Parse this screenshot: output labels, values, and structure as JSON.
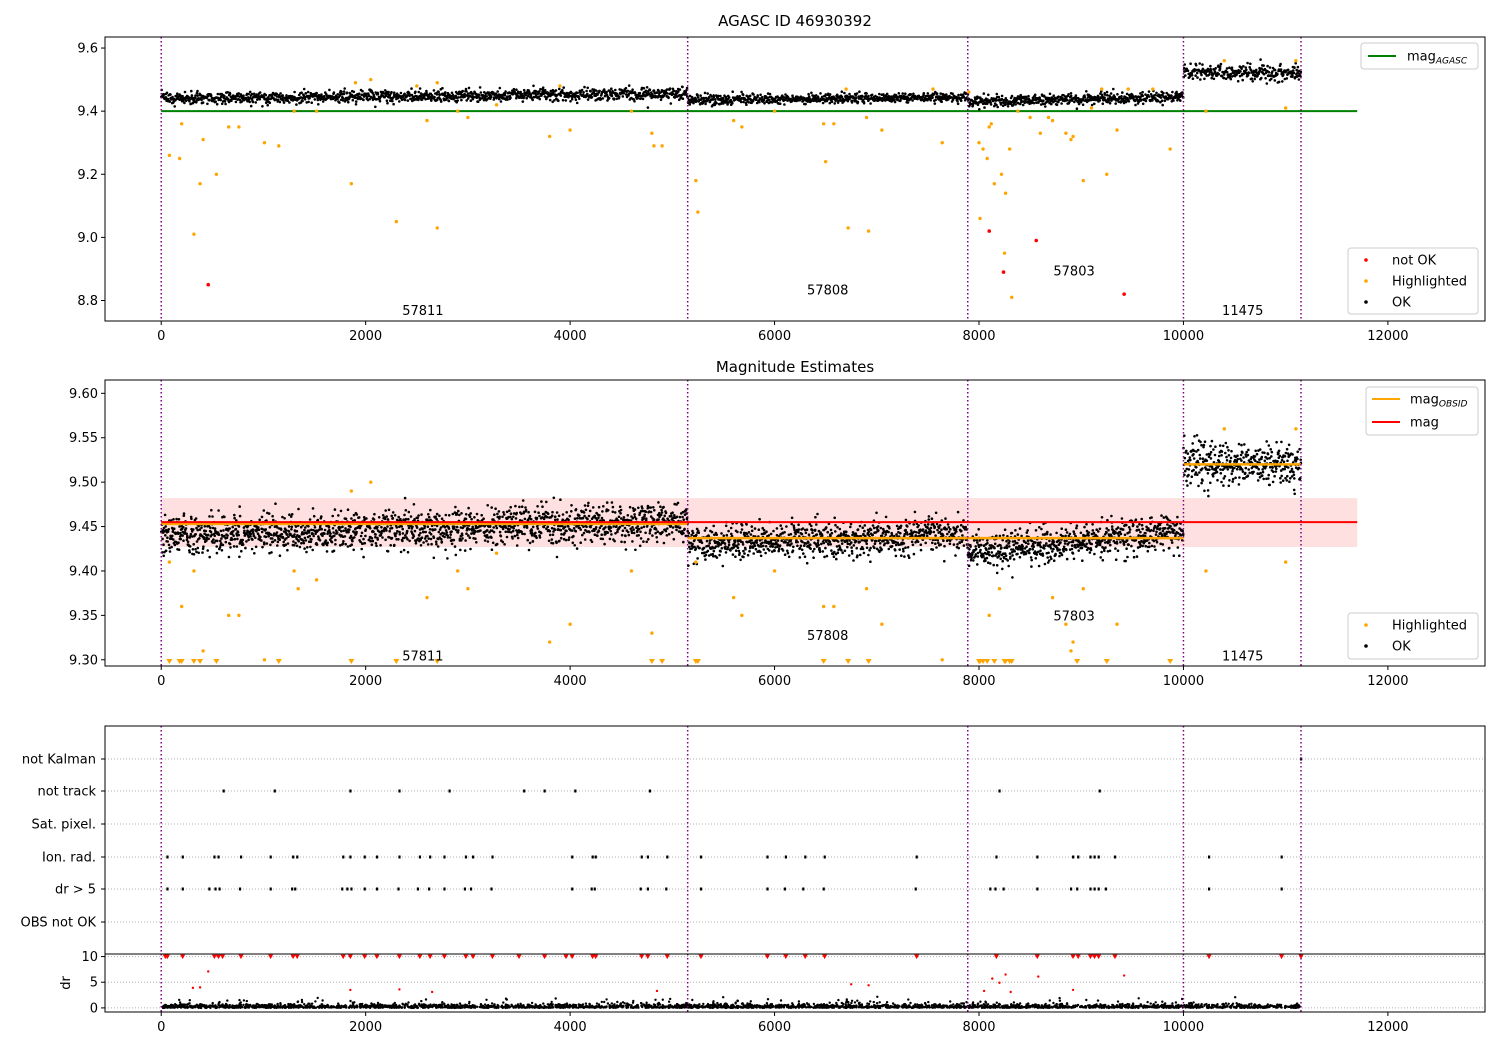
{
  "chart_data": [
    {
      "type": "scatter",
      "title": "AGASC ID 46930392",
      "xlim": [
        -550,
        12950
      ],
      "ylim": [
        8.735,
        9.635
      ],
      "xticks": [
        0,
        2000,
        4000,
        6000,
        8000,
        10000,
        12000
      ],
      "xtick_labels": [
        "0",
        "2000",
        "4000",
        "6000",
        "8000",
        "10000",
        "12000"
      ],
      "yticks": [
        8.8,
        9.0,
        9.2,
        9.4,
        9.6
      ],
      "ytick_labels": [
        "8.8",
        "9.0",
        "9.2",
        "9.4",
        "9.6"
      ],
      "obsid_boundaries": [
        0,
        5150,
        7890,
        10000,
        11150
      ],
      "obsid_labels": [
        {
          "text": "57811",
          "x": 2560,
          "y": 8.77
        },
        {
          "text": "57808",
          "x": 6520,
          "y": 8.835
        },
        {
          "text": "57803",
          "x": 8930,
          "y": 8.895
        },
        {
          "text": "11475",
          "x": 10580,
          "y": 8.77
        }
      ],
      "mag_agasc": {
        "value": 9.4,
        "x_range": [
          0,
          11700
        ],
        "color": "#008000"
      },
      "ok_segments": [
        {
          "x0": 0,
          "x1": 5150,
          "y_start": 9.44,
          "y_end": 9.455,
          "spread": 0.025
        },
        {
          "x0": 5150,
          "x1": 7890,
          "y_start": 9.435,
          "y_end": 9.445,
          "spread": 0.02
        },
        {
          "x0": 7890,
          "x1": 10000,
          "y_start": 9.43,
          "y_end": 9.445,
          "spread": 0.022
        },
        {
          "x0": 10000,
          "x1": 11150,
          "y_start": 9.525,
          "y_end": 9.52,
          "spread": 0.03
        }
      ],
      "highlighted_points": [
        [
          80,
          9.26
        ],
        [
          180,
          9.25
        ],
        [
          200,
          9.36
        ],
        [
          320,
          9.01
        ],
        [
          380,
          9.17
        ],
        [
          410,
          9.31
        ],
        [
          540,
          9.2
        ],
        [
          660,
          9.35
        ],
        [
          760,
          9.35
        ],
        [
          1010,
          9.3
        ],
        [
          1150,
          9.29
        ],
        [
          1300,
          9.4
        ],
        [
          1520,
          9.4
        ],
        [
          1860,
          9.17
        ],
        [
          1900,
          9.49
        ],
        [
          2050,
          9.5
        ],
        [
          2300,
          9.05
        ],
        [
          2500,
          9.48
        ],
        [
          2600,
          9.37
        ],
        [
          2700,
          9.03
        ],
        [
          2700,
          9.49
        ],
        [
          2900,
          9.4
        ],
        [
          3000,
          9.38
        ],
        [
          3280,
          9.42
        ],
        [
          3800,
          9.32
        ],
        [
          3900,
          9.48
        ],
        [
          4000,
          9.34
        ],
        [
          4600,
          9.4
        ],
        [
          4800,
          9.33
        ],
        [
          4820,
          9.29
        ],
        [
          4900,
          9.29
        ],
        [
          5230,
          9.18
        ],
        [
          5250,
          9.08
        ],
        [
          5600,
          9.37
        ],
        [
          5680,
          9.35
        ],
        [
          6000,
          9.4
        ],
        [
          6480,
          9.36
        ],
        [
          6500,
          9.24
        ],
        [
          6580,
          9.36
        ],
        [
          6700,
          9.47
        ],
        [
          6720,
          9.03
        ],
        [
          6900,
          9.38
        ],
        [
          6920,
          9.02
        ],
        [
          7050,
          9.34
        ],
        [
          7550,
          9.47
        ],
        [
          7640,
          9.3
        ],
        [
          7900,
          9.46
        ],
        [
          8000,
          9.3
        ],
        [
          8010,
          9.06
        ],
        [
          8040,
          9.28
        ],
        [
          8080,
          9.25
        ],
        [
          8100,
          9.35
        ],
        [
          8120,
          9.36
        ],
        [
          8150,
          9.17
        ],
        [
          8220,
          9.2
        ],
        [
          8250,
          8.95
        ],
        [
          8260,
          9.14
        ],
        [
          8300,
          9.28
        ],
        [
          8320,
          8.81
        ],
        [
          8380,
          9.4
        ],
        [
          8500,
          9.38
        ],
        [
          8600,
          9.33
        ],
        [
          8680,
          9.38
        ],
        [
          8720,
          9.37
        ],
        [
          8850,
          9.33
        ],
        [
          8900,
          9.31
        ],
        [
          8920,
          9.32
        ],
        [
          9020,
          9.18
        ],
        [
          9100,
          9.41
        ],
        [
          9200,
          9.47
        ],
        [
          9250,
          9.2
        ],
        [
          9350,
          9.34
        ],
        [
          9460,
          9.47
        ],
        [
          9700,
          9.47
        ],
        [
          9870,
          9.28
        ],
        [
          10220,
          9.4
        ],
        [
          10400,
          9.56
        ],
        [
          11000,
          9.41
        ],
        [
          11100,
          9.56
        ]
      ],
      "not_ok_points": [
        [
          460,
          8.85
        ],
        [
          8100,
          9.02
        ],
        [
          8240,
          8.89
        ],
        [
          8560,
          8.99
        ],
        [
          9420,
          8.82
        ]
      ],
      "legend_top": [
        {
          "label": "mag",
          "sub": "AGASC",
          "color": "#008000"
        }
      ],
      "legend_bottom": [
        {
          "label": "not OK",
          "color": "#ff0000"
        },
        {
          "label": "Highlighted",
          "color": "#ffa500"
        },
        {
          "label": "OK",
          "color": "#000000"
        }
      ]
    },
    {
      "type": "scatter",
      "title": "Magnitude Estimates",
      "xlim": [
        -550,
        12950
      ],
      "ylim": [
        9.293,
        9.615
      ],
      "xticks": [
        0,
        2000,
        4000,
        6000,
        8000,
        10000,
        12000
      ],
      "xtick_labels": [
        "0",
        "2000",
        "4000",
        "6000",
        "8000",
        "10000",
        "12000"
      ],
      "yticks": [
        9.3,
        9.35,
        9.4,
        9.45,
        9.5,
        9.55,
        9.6
      ],
      "ytick_labels": [
        "9.30",
        "9.35",
        "9.40",
        "9.45",
        "9.50",
        "9.55",
        "9.60"
      ],
      "obsid_boundaries": [
        0,
        5150,
        7890,
        10000,
        11150
      ],
      "obsid_labels": [
        {
          "text": "57811",
          "x": 2560,
          "y": 9.305
        },
        {
          "text": "57808",
          "x": 6520,
          "y": 9.328
        },
        {
          "text": "57803",
          "x": 8930,
          "y": 9.35
        },
        {
          "text": "11475",
          "x": 10580,
          "y": 9.305
        }
      ],
      "mag": {
        "value": 9.455,
        "band": [
          9.427,
          9.482
        ],
        "x_range": [
          0,
          11700
        ],
        "color": "#ff0000",
        "band_color": "#ffcccc"
      },
      "mag_obsid": [
        {
          "x0": 0,
          "x1": 5150,
          "value": 9.453
        },
        {
          "x0": 5150,
          "x1": 7890,
          "value": 9.437
        },
        {
          "x0": 7890,
          "x1": 10000,
          "value": 9.437
        },
        {
          "x0": 10000,
          "x1": 11150,
          "value": 9.52
        }
      ],
      "ok_segments": [
        {
          "x0": 0,
          "x1": 5150,
          "y_start": 9.44,
          "y_end": 9.455,
          "spread": 0.028
        },
        {
          "x0": 5150,
          "x1": 7890,
          "y_start": 9.43,
          "y_end": 9.44,
          "spread": 0.024
        },
        {
          "x0": 7890,
          "x1": 10000,
          "y_start": 9.42,
          "y_end": 9.445,
          "spread": 0.026
        },
        {
          "x0": 10000,
          "x1": 11150,
          "y_start": 9.52,
          "y_end": 9.52,
          "spread": 0.032
        }
      ],
      "highlighted_points": [
        [
          80,
          9.41
        ],
        [
          200,
          9.36
        ],
        [
          320,
          9.4
        ],
        [
          410,
          9.31
        ],
        [
          660,
          9.35
        ],
        [
          760,
          9.35
        ],
        [
          1010,
          9.3
        ],
        [
          1300,
          9.4
        ],
        [
          1340,
          9.38
        ],
        [
          1520,
          9.39
        ],
        [
          1860,
          9.49
        ],
        [
          2050,
          9.5
        ],
        [
          2600,
          9.37
        ],
        [
          2900,
          9.4
        ],
        [
          3000,
          9.38
        ],
        [
          3280,
          9.42
        ],
        [
          3800,
          9.32
        ],
        [
          4000,
          9.34
        ],
        [
          4600,
          9.4
        ],
        [
          4800,
          9.33
        ],
        [
          5230,
          9.41
        ],
        [
          5600,
          9.37
        ],
        [
          5680,
          9.35
        ],
        [
          6000,
          9.4
        ],
        [
          6480,
          9.36
        ],
        [
          6580,
          9.36
        ],
        [
          6900,
          9.38
        ],
        [
          7050,
          9.34
        ],
        [
          7640,
          9.3
        ],
        [
          8100,
          9.35
        ],
        [
          8200,
          9.38
        ],
        [
          8720,
          9.37
        ],
        [
          8850,
          9.34
        ],
        [
          8900,
          9.31
        ],
        [
          8920,
          9.32
        ],
        [
          9020,
          9.38
        ],
        [
          9350,
          9.34
        ],
        [
          10220,
          9.4
        ],
        [
          10400,
          9.56
        ],
        [
          11000,
          9.41
        ],
        [
          11100,
          9.56
        ]
      ],
      "clipped_points_x": [
        80,
        180,
        200,
        320,
        380,
        540,
        1150,
        1860,
        2300,
        2700,
        4800,
        4900,
        5230,
        5250,
        6480,
        6720,
        6920,
        8000,
        8010,
        8040,
        8080,
        8150,
        8250,
        8260,
        8300,
        8320,
        8960,
        9250,
        9870
      ],
      "legend_top": [
        {
          "label": "mag",
          "sub": "OBSID",
          "color": "#ffa500"
        },
        {
          "label": "mag",
          "sub": "",
          "color": "#ff0000"
        }
      ],
      "legend_bottom": [
        {
          "label": "Highlighted",
          "color": "#ffa500"
        },
        {
          "label": "OK",
          "color": "#000000"
        }
      ]
    },
    {
      "type": "scatter",
      "title": "",
      "xlim": [
        -550,
        12950
      ],
      "flag_rows": [
        "not Kalman",
        "not track",
        "Sat. pixel.",
        "Ion. rad.",
        "dr > 5",
        "OBS not OK"
      ],
      "obsid_boundaries": [
        0,
        5150,
        7890,
        10000,
        11150
      ],
      "flag_points": {
        "not Kalman": [
          11150
        ],
        "not track": [
          610,
          1110,
          1850,
          2330,
          2820,
          3550,
          3750,
          4050,
          4780,
          8200,
          9180
        ],
        "Sat. pixel.": [],
        "Ion. rad.": [
          60,
          210,
          520,
          560,
          780,
          1070,
          1290,
          1330,
          1780,
          1850,
          1990,
          2110,
          2330,
          2530,
          2630,
          2770,
          2980,
          3050,
          3240,
          4020,
          4220,
          4250,
          4700,
          4760,
          4950,
          5280,
          5930,
          6110,
          6300,
          6490,
          7390,
          8170,
          8570,
          8920,
          8970,
          9090,
          9130,
          9170,
          9330,
          10250,
          10960
        ],
        "dr > 5": [
          60,
          210,
          470,
          530,
          570,
          770,
          1070,
          1280,
          1310,
          1770,
          1820,
          1860,
          1990,
          2110,
          2320,
          2510,
          2620,
          2770,
          2970,
          3030,
          3230,
          4020,
          4210,
          4240,
          4690,
          4760,
          4940,
          5280,
          5930,
          6100,
          6280,
          6480,
          7380,
          8110,
          8160,
          8240,
          8570,
          8900,
          8960,
          9090,
          9130,
          9170,
          9240,
          10250,
          10960
        ],
        "OBS not OK": []
      }
    },
    {
      "type": "scatter",
      "title": "",
      "xlim": [
        -550,
        12950
      ],
      "ylim": [
        -0.8,
        10.5
      ],
      "ylabel": "dr",
      "xticks": [
        0,
        2000,
        4000,
        6000,
        8000,
        10000,
        12000
      ],
      "xtick_labels": [
        "0",
        "2000",
        "4000",
        "6000",
        "8000",
        "10000",
        "12000"
      ],
      "yticks": [
        0,
        5,
        10
      ],
      "ytick_labels": [
        "0",
        "5",
        "10"
      ],
      "obsid_boundaries": [
        0,
        5150,
        7890,
        10000,
        11150
      ],
      "clipped_x": [
        40,
        60,
        210,
        520,
        560,
        600,
        780,
        1070,
        1290,
        1330,
        1780,
        1850,
        1990,
        2110,
        2330,
        2530,
        2630,
        2770,
        2980,
        3050,
        3240,
        3500,
        3750,
        3960,
        4020,
        4220,
        4250,
        4700,
        4760,
        4950,
        5280,
        5930,
        6110,
        6300,
        6490,
        7390,
        8170,
        8570,
        8920,
        8970,
        9090,
        9130,
        9170,
        9330,
        10250,
        10960,
        11150
      ],
      "red_points": [
        [
          310,
          3.9
        ],
        [
          380,
          4.0
        ],
        [
          460,
          7.1
        ],
        [
          1850,
          3.5
        ],
        [
          2330,
          3.6
        ],
        [
          2650,
          3.1
        ],
        [
          4850,
          3.3
        ],
        [
          6750,
          4.6
        ],
        [
          6920,
          4.4
        ],
        [
          8050,
          3.3
        ],
        [
          8130,
          5.7
        ],
        [
          8200,
          4.9
        ],
        [
          8260,
          6.5
        ],
        [
          8310,
          3.1
        ],
        [
          8580,
          6.1
        ],
        [
          8920,
          3.5
        ],
        [
          9420,
          6.3
        ]
      ]
    }
  ]
}
